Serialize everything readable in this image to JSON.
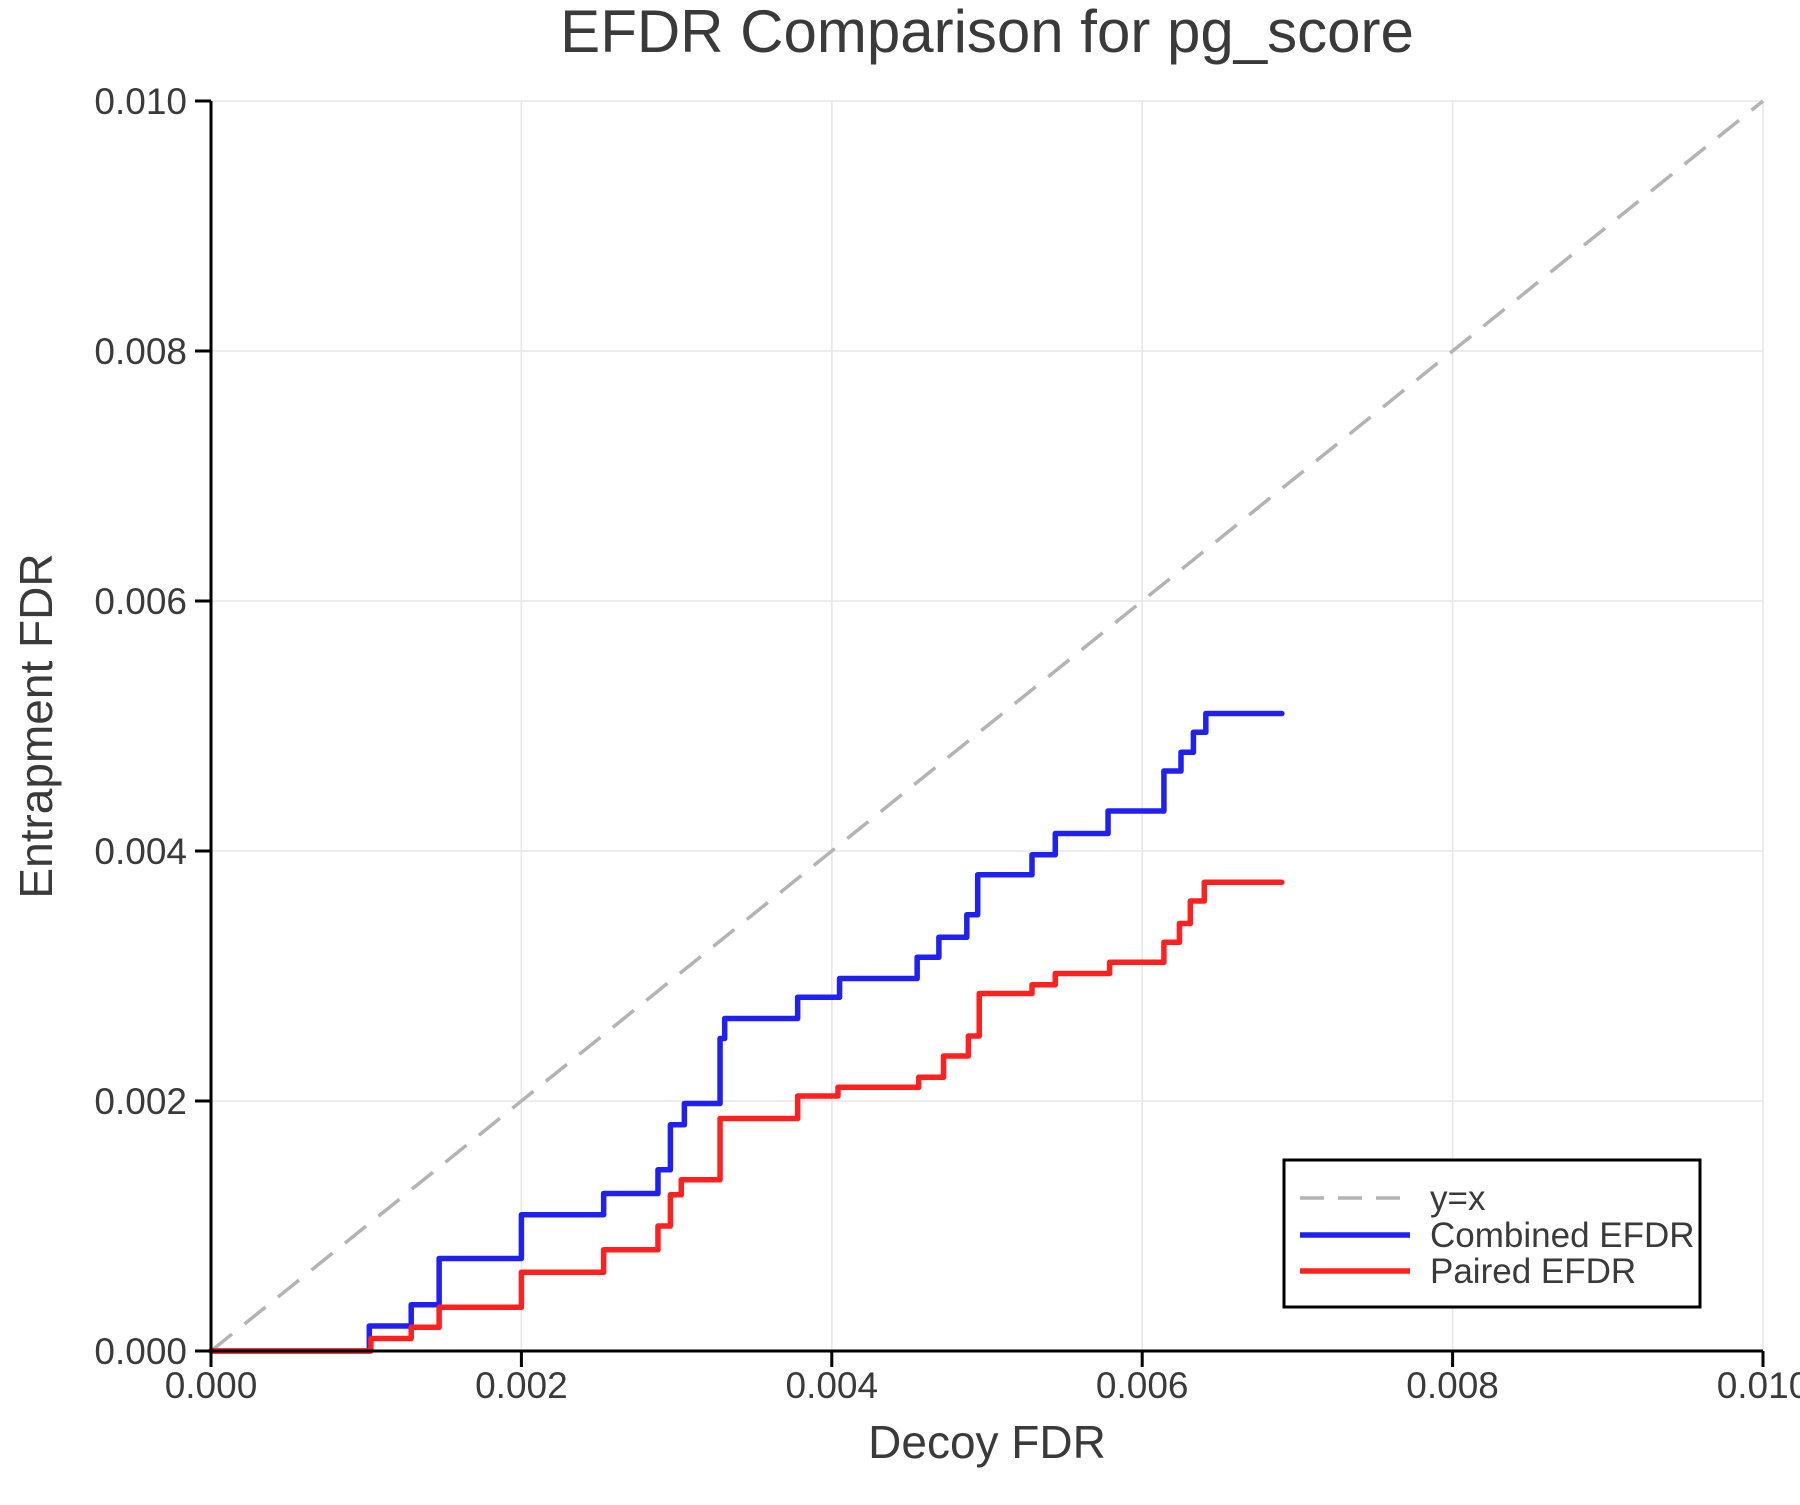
{
  "page": {
    "background": "#ffffff"
  },
  "colors": {
    "text": "#3a3a3a",
    "spine": "#000000",
    "tick": "#000000",
    "grid": "#e7e7e7",
    "legend_border": "#000000",
    "legend_bg": "#ffffff"
  },
  "chart_data": {
    "type": "line",
    "step_mode": "step-post",
    "title": "EFDR Comparison for pg_score",
    "xlabel": "Decoy FDR",
    "ylabel": "Entrapment FDR",
    "xlim": [
      0.0,
      0.01
    ],
    "ylim": [
      0.0,
      0.01
    ],
    "x_ticks": [
      0.0,
      0.002,
      0.004,
      0.006,
      0.008,
      0.01
    ],
    "x_tick_labels": [
      "0.000",
      "0.002",
      "0.004",
      "0.006",
      "0.008",
      "0.010"
    ],
    "y_ticks": [
      0.0,
      0.002,
      0.004,
      0.006,
      0.008,
      0.01
    ],
    "y_tick_labels": [
      "0.000",
      "0.002",
      "0.004",
      "0.006",
      "0.008",
      "0.010"
    ],
    "grid": true,
    "reference_line": {
      "label": "y=x",
      "start": [
        0.0,
        0.0
      ],
      "end": [
        0.01,
        0.01
      ],
      "color": "#b3b3b3",
      "dashed": true
    },
    "series": [
      {
        "name": "Combined EFDR",
        "color": "#2020f0",
        "start": [
          0.0,
          0.0
        ],
        "end_x": 0.0069,
        "steps": [
          [
            0.00102,
            0.0002
          ],
          [
            0.00129,
            0.00037
          ],
          [
            0.00147,
            0.00074
          ],
          [
            0.002,
            0.00109
          ],
          [
            0.00253,
            0.00126
          ],
          [
            0.00288,
            0.00145
          ],
          [
            0.00296,
            0.00181
          ],
          [
            0.00305,
            0.00198
          ],
          [
            0.00328,
            0.0025
          ],
          [
            0.00331,
            0.00266
          ],
          [
            0.00378,
            0.00283
          ],
          [
            0.00405,
            0.00298
          ],
          [
            0.00455,
            0.00315
          ],
          [
            0.00469,
            0.00331
          ],
          [
            0.00487,
            0.00349
          ],
          [
            0.00494,
            0.00381
          ],
          [
            0.00529,
            0.00397
          ],
          [
            0.00544,
            0.00414
          ],
          [
            0.00578,
            0.00432
          ],
          [
            0.00614,
            0.00464
          ],
          [
            0.00625,
            0.00479
          ],
          [
            0.00633,
            0.00495
          ],
          [
            0.00641,
            0.0051
          ]
        ]
      },
      {
        "name": "Paired EFDR",
        "color": "#ff2020",
        "start": [
          0.0,
          0.0
        ],
        "end_x": 0.0069,
        "steps": [
          [
            0.00103,
            0.0001
          ],
          [
            0.00129,
            0.00019
          ],
          [
            0.00147,
            0.00035
          ],
          [
            0.002,
            0.00063
          ],
          [
            0.00253,
            0.00081
          ],
          [
            0.00288,
            0.001
          ],
          [
            0.00296,
            0.00125
          ],
          [
            0.00303,
            0.00137
          ],
          [
            0.00328,
            0.00186
          ],
          [
            0.00378,
            0.00204
          ],
          [
            0.00404,
            0.00211
          ],
          [
            0.00456,
            0.00219
          ],
          [
            0.00472,
            0.00236
          ],
          [
            0.00488,
            0.00252
          ],
          [
            0.00495,
            0.00286
          ],
          [
            0.00529,
            0.00293
          ],
          [
            0.00544,
            0.00302
          ],
          [
            0.00579,
            0.00311
          ],
          [
            0.00614,
            0.00327
          ],
          [
            0.00624,
            0.00342
          ],
          [
            0.00631,
            0.0036
          ],
          [
            0.0064,
            0.00375
          ]
        ]
      }
    ],
    "legend": {
      "position": "lower right",
      "entries": [
        {
          "label": "y=x",
          "color": "#b3b3b3",
          "dashed": true
        },
        {
          "label": "Combined EFDR",
          "color": "#2020f0",
          "dashed": false
        },
        {
          "label": "Paired EFDR",
          "color": "#ff2020",
          "dashed": false
        }
      ]
    }
  }
}
